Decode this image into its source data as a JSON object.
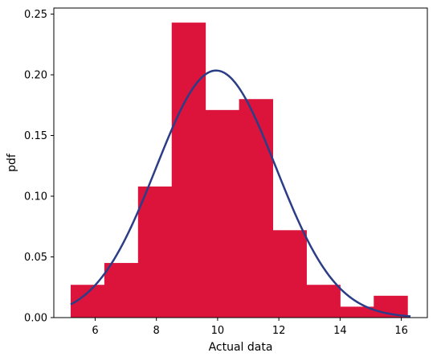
{
  "chart_data": {
    "type": "bar",
    "title": "",
    "xlabel": "Actual data",
    "ylabel": "pdf",
    "xlim": [
      4.65,
      16.85
    ],
    "ylim": [
      0,
      0.255
    ],
    "xticks": [
      6,
      8,
      10,
      12,
      14,
      16
    ],
    "yticks": [
      0.0,
      0.05,
      0.1,
      0.15,
      0.2,
      0.25
    ],
    "ytick_labels": [
      "0.00",
      "0.05",
      "0.10",
      "0.15",
      "0.20",
      "0.25"
    ],
    "grid": false,
    "histogram": {
      "bin_edges": [
        5.2,
        6.3,
        7.4,
        8.5,
        9.6,
        10.7,
        11.8,
        12.9,
        14.0,
        15.1,
        16.2
      ],
      "densities": [
        0.027,
        0.045,
        0.108,
        0.243,
        0.171,
        0.18,
        0.072,
        0.027,
        0.009,
        0.018
      ],
      "color": "#dc143c"
    },
    "curve": {
      "type": "normal-pdf",
      "mean": 9.95,
      "std": 1.96,
      "x_range": [
        5.2,
        16.3
      ],
      "color": "#2b3d87"
    }
  }
}
